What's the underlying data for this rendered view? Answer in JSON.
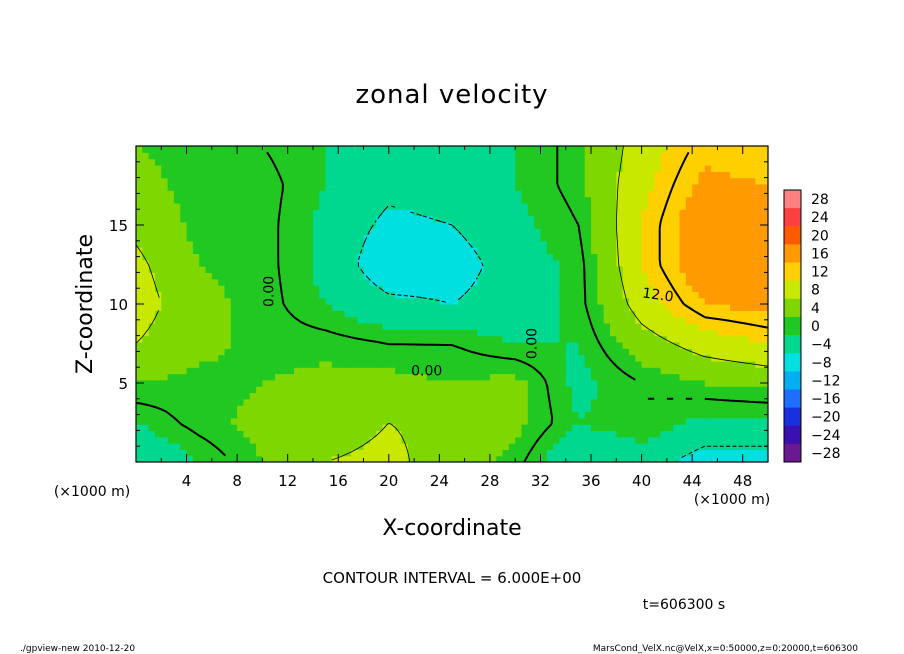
{
  "chart_data": {
    "type": "heatmap",
    "title": "zonal velocity",
    "xlabel": "X-coordinate",
    "ylabel": "Z-coordinate",
    "x_unit": "(×1000 m)",
    "y_unit": "(×1000 m)",
    "xlim": [
      0,
      50
    ],
    "ylim": [
      0,
      20
    ],
    "x_ticks": [
      4,
      8,
      12,
      16,
      20,
      24,
      28,
      32,
      36,
      40,
      44,
      48
    ],
    "y_ticks": [
      5,
      10,
      15
    ],
    "colorbar_levels": [
      28,
      24,
      20,
      16,
      12,
      8,
      4,
      0,
      -4,
      -8,
      -12,
      -16,
      -20,
      -24,
      -28
    ],
    "colorbar_colors": [
      "#ff8080",
      "#ff4040",
      "#ff5a00",
      "#ff9a00",
      "#ffd000",
      "#c8e800",
      "#7ed800",
      "#22c822",
      "#00d890",
      "#00e0e0",
      "#00b0f0",
      "#1f6fff",
      "#1830e0",
      "#3a10b0",
      "#6a1a90"
    ],
    "contour_interval": "CONTOUR INTERVAL = 6.000E+00",
    "contour_labels": [
      "0.00",
      "0.00",
      "0.00",
      "12.0"
    ],
    "time_label": "t=606300 s",
    "footer_left": "./gpview-new  2010-12-20",
    "footer_right": "MarsCond_VelX.nc@VelX,x=0:50000,z=0:20000,t=606300",
    "grid": false,
    "field": {
      "x": [
        0,
        5,
        10,
        15,
        20,
        25,
        30,
        35,
        40,
        45,
        50
      ],
      "z": [
        0,
        2.5,
        5,
        7.5,
        10,
        12.5,
        15,
        17.5,
        20
      ],
      "values": [
        [
          -6,
          -2,
          2,
          6,
          7,
          4,
          1,
          -6,
          -4,
          -8,
          -8
        ],
        [
          -2,
          1,
          3,
          4,
          6,
          5,
          3,
          -2,
          0,
          -3,
          -3
        ],
        [
          2,
          1,
          2,
          3,
          3,
          2,
          3,
          -3,
          0,
          2,
          3
        ],
        [
          6,
          3,
          1,
          1,
          0,
          0,
          -2,
          -2,
          4,
          8,
          10
        ],
        [
          8,
          3,
          1,
          -2,
          -5,
          -6,
          -4,
          -1,
          8,
          14,
          15
        ],
        [
          7,
          2,
          1,
          -3,
          -9,
          -8,
          -4,
          -1,
          10,
          17,
          17
        ],
        [
          5,
          1,
          1,
          -3,
          -7,
          -6,
          -3,
          0,
          10,
          17,
          16
        ],
        [
          3,
          1,
          1,
          -2,
          -5,
          -4,
          -2,
          1,
          9,
          15,
          14
        ],
        [
          2,
          1,
          0,
          -2,
          -4,
          -3,
          -2,
          1,
          8,
          13,
          12
        ]
      ]
    }
  }
}
